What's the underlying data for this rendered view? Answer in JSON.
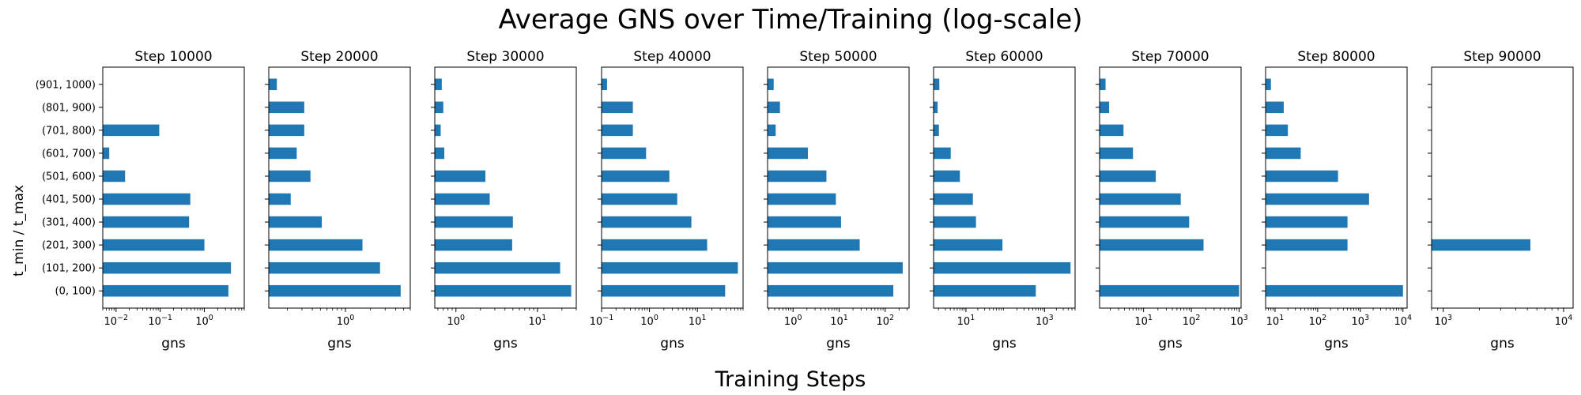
{
  "figure": {
    "title": "Average GNS over Time/Training (log-scale)",
    "supxlabel": "Training Steps",
    "ylabel": "t_min / t_max",
    "bar_color": "#1f77b4"
  },
  "chart_data": [
    {
      "type": "bar",
      "orientation": "horizontal",
      "title": "Step 10000",
      "xlabel": "gns",
      "xscale": "log",
      "xlim": [
        0.005,
        8
      ],
      "categories": [
        "(0, 100)",
        "(101, 200)",
        "(201, 300)",
        "(301, 400)",
        "(401, 500)",
        "(501, 600)",
        "(601, 700)",
        "(701, 800)",
        "(801, 900)",
        "(901, 1000)"
      ],
      "values": [
        3.5,
        4.0,
        1.0,
        0.45,
        0.48,
        0.016,
        0.007,
        0.095,
        null,
        null
      ],
      "xticks": [
        {
          "base": "10",
          "exp": "−2",
          "value": 0.01
        },
        {
          "base": "10",
          "exp": "−1",
          "value": 0.1
        },
        {
          "base": "10",
          "exp": "0",
          "value": 1
        }
      ]
    },
    {
      "type": "bar",
      "orientation": "horizontal",
      "title": "Step 20000",
      "xlabel": "gns",
      "xscale": "log",
      "xlim": [
        0.12,
        6
      ],
      "categories": [
        "(0, 100)",
        "(101, 200)",
        "(201, 300)",
        "(301, 400)",
        "(401, 500)",
        "(501, 600)",
        "(601, 700)",
        "(701, 800)",
        "(801, 900)",
        "(901, 1000)"
      ],
      "values": [
        4.6,
        2.6,
        1.6,
        0.52,
        0.22,
        0.38,
        0.26,
        0.32,
        0.32,
        0.15
      ],
      "xticks": [
        {
          "base": "10",
          "exp": "0",
          "value": 1
        }
      ]
    },
    {
      "type": "bar",
      "orientation": "horizontal",
      "title": "Step 30000",
      "xlabel": "gns",
      "xscale": "log",
      "xlim": [
        0.55,
        30
      ],
      "categories": [
        "(0, 100)",
        "(101, 200)",
        "(201, 300)",
        "(301, 400)",
        "(401, 500)",
        "(501, 600)",
        "(601, 700)",
        "(701, 800)",
        "(801, 900)",
        "(901, 1000)"
      ],
      "values": [
        26,
        19,
        4.9,
        5.0,
        2.6,
        2.3,
        0.72,
        0.65,
        0.7,
        0.67
      ],
      "xticks": [
        {
          "base": "10",
          "exp": "0",
          "value": 1
        },
        {
          "base": "10",
          "exp": "1",
          "value": 10
        }
      ]
    },
    {
      "type": "bar",
      "orientation": "horizontal",
      "title": "Step 40000",
      "xlabel": "gns",
      "xscale": "log",
      "xlim": [
        0.1,
        90
      ],
      "categories": [
        "(0, 100)",
        "(101, 200)",
        "(201, 300)",
        "(301, 400)",
        "(401, 500)",
        "(501, 600)",
        "(601, 700)",
        "(701, 800)",
        "(801, 900)",
        "(901, 1000)"
      ],
      "values": [
        38,
        70,
        16,
        7.5,
        3.8,
        2.6,
        0.85,
        0.45,
        0.45,
        0.13
      ],
      "xticks": [
        {
          "base": "10",
          "exp": "−1",
          "value": 0.1
        },
        {
          "base": "10",
          "exp": "0",
          "value": 1
        },
        {
          "base": "10",
          "exp": "1",
          "value": 10
        }
      ]
    },
    {
      "type": "bar",
      "orientation": "horizontal",
      "title": "Step 50000",
      "xlabel": "gns",
      "xscale": "log",
      "xlim": [
        0.28,
        330
      ],
      "categories": [
        "(0, 100)",
        "(101, 200)",
        "(201, 300)",
        "(301, 400)",
        "(401, 500)",
        "(501, 600)",
        "(601, 700)",
        "(701, 800)",
        "(801, 900)",
        "(901, 1000)"
      ],
      "values": [
        150,
        240,
        28,
        11,
        8.5,
        5.3,
        2.1,
        0.42,
        0.52,
        0.38
      ],
      "xticks": [
        {
          "base": "10",
          "exp": "0",
          "value": 1
        },
        {
          "base": "10",
          "exp": "1",
          "value": 10
        },
        {
          "base": "10",
          "exp": "2",
          "value": 100
        }
      ]
    },
    {
      "type": "bar",
      "orientation": "horizontal",
      "title": "Step 60000",
      "xlabel": "gns",
      "xscale": "log",
      "xlim": [
        1.5,
        6000
      ],
      "categories": [
        "(0, 100)",
        "(101, 200)",
        "(201, 300)",
        "(301, 400)",
        "(401, 500)",
        "(501, 600)",
        "(601, 700)",
        "(701, 800)",
        "(801, 900)",
        "(901, 1000)"
      ],
      "values": [
        600,
        4600,
        85,
        18,
        15,
        7,
        4.1,
        2.05,
        1.9,
        2.1
      ],
      "xticks": [
        {
          "base": "10",
          "exp": "1",
          "value": 10
        },
        {
          "base": "10",
          "exp": "3",
          "value": 1000
        }
      ]
    },
    {
      "type": "bar",
      "orientation": "horizontal",
      "title": "Step 70000",
      "xlabel": "gns",
      "xscale": "log",
      "xlim": [
        1.2,
        1100
      ],
      "categories": [
        "(0, 100)",
        "(101, 200)",
        "(201, 300)",
        "(301, 400)",
        "(401, 500)",
        "(501, 600)",
        "(601, 700)",
        "(701, 800)",
        "(801, 900)",
        "(901, 1000)"
      ],
      "values": [
        1000,
        null,
        180,
        90,
        60,
        18,
        6,
        3.8,
        1.9,
        1.6
      ],
      "xticks": [
        {
          "base": "10",
          "exp": "1",
          "value": 10
        },
        {
          "base": "10",
          "exp": "2",
          "value": 100
        },
        {
          "base": "10",
          "exp": "3",
          "value": 1000
        }
      ]
    },
    {
      "type": "bar",
      "orientation": "horizontal",
      "title": "Step 80000",
      "xlabel": "gns",
      "xscale": "log",
      "xlim": [
        6,
        12500
      ],
      "categories": [
        "(0, 100)",
        "(101, 200)",
        "(201, 300)",
        "(301, 400)",
        "(401, 500)",
        "(501, 600)",
        "(601, 700)",
        "(701, 800)",
        "(801, 900)",
        "(901, 1000)"
      ],
      "values": [
        10000,
        null,
        500,
        500,
        1600,
        300,
        40,
        20,
        16,
        8
      ],
      "xticks": [
        {
          "base": "10",
          "exp": "1",
          "value": 10
        },
        {
          "base": "10",
          "exp": "2",
          "value": 100
        },
        {
          "base": "10",
          "exp": "3",
          "value": 1000
        },
        {
          "base": "10",
          "exp": "4",
          "value": 10000
        }
      ]
    },
    {
      "type": "bar",
      "orientation": "horizontal",
      "title": "Step 90000",
      "xlabel": "gns",
      "xscale": "log",
      "xlim": [
        800,
        12000
      ],
      "categories": [
        "(0, 100)",
        "(101, 200)",
        "(201, 300)",
        "(301, 400)",
        "(401, 500)",
        "(501, 600)",
        "(601, 700)",
        "(701, 800)",
        "(801, 900)",
        "(901, 1000)"
      ],
      "values": [
        null,
        null,
        5300,
        null,
        null,
        null,
        null,
        null,
        null,
        null
      ],
      "xticks": [
        {
          "base": "10",
          "exp": "3",
          "value": 1000
        },
        {
          "base": "10",
          "exp": "4",
          "value": 10000
        }
      ]
    }
  ]
}
